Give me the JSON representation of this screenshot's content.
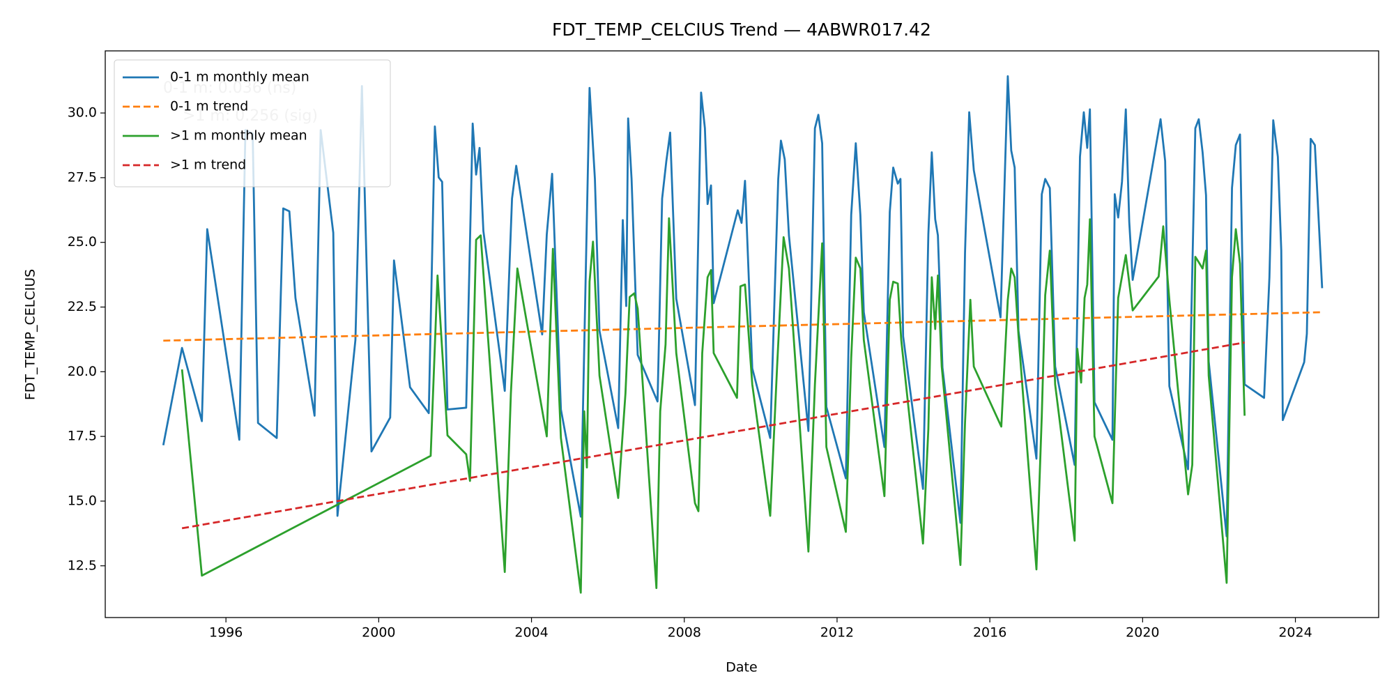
{
  "chart_data": {
    "type": "line",
    "title": "FDT_TEMP_CELCIUS Trend — 4ABWR017.42",
    "xlabel": "Date",
    "ylabel": "FDT_TEMP_CELCIUS",
    "xlim": [
      1992.84,
      2026.18
    ],
    "xticks": [
      1996,
      2000,
      2004,
      2008,
      2012,
      2016,
      2020,
      2024
    ],
    "ylim": [
      10.5,
      32.4
    ],
    "yticks": [
      12.5,
      {
        "value": 15,
        "label": "15.0"
      },
      17.5,
      {
        "value": 20,
        "label": "20.0"
      },
      22.5,
      {
        "value": 25,
        "label": "25.0"
      },
      27.5,
      {
        "value": 30,
        "label": "30.0"
      }
    ],
    "grid": false,
    "legend": "upper left",
    "annotations": [
      "0-1 m: 0.036 (ns)",
      ">1 m: 0.256 (sig)"
    ],
    "series": [
      {
        "name": "0-1 m monthly mean",
        "color": "#1f77b4",
        "linestyle": "solid",
        "x": [
          1994.36,
          1994.85,
          1995.37,
          1995.51,
          1996.35,
          1996.51,
          1996.7,
          1996.84,
          1997.33,
          1997.5,
          1997.66,
          1997.82,
          1998.32,
          1998.48,
          1998.81,
          1998.92,
          1999.39,
          1999.56,
          1999.81,
          2000.3,
          2000.4,
          2000.82,
          2001.31,
          2001.47,
          2001.57,
          2001.66,
          2001.8,
          2002.29,
          2002.46,
          2002.55,
          2002.64,
          2002.74,
          2003.3,
          2003.49,
          2003.6,
          2004.28,
          2004.4,
          2004.54,
          2004.77,
          2005.29,
          2005.52,
          2005.66,
          2005.78,
          2006.27,
          2006.39,
          2006.48,
          2006.53,
          2006.62,
          2006.78,
          2007.3,
          2007.42,
          2007.53,
          2007.63,
          2007.79,
          2008.28,
          2008.44,
          2008.54,
          2008.61,
          2008.7,
          2008.77,
          2009.4,
          2009.5,
          2009.59,
          2009.78,
          2010.25,
          2010.46,
          2010.53,
          2010.63,
          2010.74,
          2011.25,
          2011.42,
          2011.51,
          2011.61,
          2011.72,
          2012.23,
          2012.37,
          2012.49,
          2012.61,
          2012.7,
          2013.24,
          2013.38,
          2013.47,
          2013.59,
          2013.66,
          2013.73,
          2014.25,
          2014.39,
          2014.48,
          2014.57,
          2014.64,
          2014.76,
          2015.23,
          2015.35,
          2015.46,
          2015.58,
          2016.28,
          2016.47,
          2016.56,
          2016.65,
          2016.75,
          2017.22,
          2017.36,
          2017.45,
          2017.57,
          2017.71,
          2018.22,
          2018.36,
          2018.46,
          2018.55,
          2018.62,
          2018.74,
          2019.21,
          2019.27,
          2019.36,
          2019.46,
          2019.56,
          2019.65,
          2019.74,
          2020.47,
          2020.59,
          2020.7,
          2021.19,
          2021.38,
          2021.47,
          2021.57,
          2021.66,
          2021.73,
          2022.2,
          2022.34,
          2022.44,
          2022.55,
          2022.67,
          2023.18,
          2023.32,
          2023.42,
          2023.54,
          2023.63,
          2023.67,
          2024.23,
          2024.3,
          2024.4,
          2024.51,
          2024.7
        ],
        "values": [
          17.16,
          20.92,
          18.09,
          25.51,
          17.37,
          29.34,
          29.2,
          18.02,
          17.44,
          26.31,
          26.2,
          22.85,
          18.3,
          29.34,
          25.37,
          14.43,
          21.23,
          31.04,
          16.92,
          18.23,
          24.3,
          19.4,
          18.4,
          29.48,
          27.51,
          27.34,
          18.54,
          18.61,
          29.59,
          27.62,
          28.65,
          25.44,
          19.26,
          26.69,
          27.96,
          21.44,
          25.31,
          27.65,
          18.54,
          14.4,
          30.97,
          27.45,
          21.58,
          17.82,
          25.86,
          22.54,
          29.79,
          27.45,
          20.65,
          18.85,
          26.69,
          28.14,
          29.24,
          22.82,
          18.71,
          30.79,
          29.41,
          26.48,
          27.2,
          22.65,
          26.24,
          25.75,
          27.38,
          20.13,
          17.44,
          27.45,
          28.93,
          28.21,
          25.27,
          17.71,
          29.41,
          29.93,
          28.83,
          18.64,
          15.88,
          26.06,
          28.83,
          26.06,
          22.3,
          17.09,
          26.17,
          27.89,
          27.27,
          27.45,
          21.37,
          15.47,
          25.31,
          28.48,
          25.89,
          25.27,
          20.16,
          14.16,
          24.58,
          30.03,
          27.79,
          22.1,
          31.42,
          28.55,
          27.89,
          21.58,
          16.64,
          26.86,
          27.45,
          27.1,
          20.2,
          16.4,
          28.31,
          30.03,
          28.65,
          30.14,
          18.82,
          17.37,
          26.86,
          25.96,
          27.34,
          30.14,
          25.79,
          23.55,
          29.76,
          28.14,
          19.44,
          16.23,
          29.41,
          29.76,
          28.48,
          26.82,
          20.4,
          13.64,
          27.1,
          28.76,
          29.17,
          19.51,
          18.99,
          23.65,
          29.72,
          28.31,
          24.68,
          18.13,
          20.37,
          21.47,
          29.0,
          28.76,
          23.23
        ]
      },
      {
        "name": "0-1 m trend",
        "color": "#ff7f0e",
        "linestyle": "dashed",
        "x": [
          1994.36,
          2024.7
        ],
        "values": [
          21.2,
          22.3
        ]
      },
      {
        "name": ">1 m monthly mean",
        "color": "#2ca02c",
        "linestyle": "solid",
        "x": [
          1994.85,
          1995.37,
          2001.36,
          2001.54,
          2001.8,
          2002.29,
          2002.39,
          2002.55,
          2002.67,
          2003.3,
          2003.46,
          2003.63,
          2004.4,
          2004.56,
          2004.77,
          2005.29,
          2005.38,
          2005.45,
          2005.52,
          2005.61,
          2005.78,
          2006.27,
          2006.46,
          2006.57,
          2006.69,
          2006.78,
          2007.27,
          2007.37,
          2007.51,
          2007.6,
          2007.79,
          2008.28,
          2008.37,
          2008.47,
          2008.61,
          2008.7,
          2008.77,
          2009.38,
          2009.47,
          2009.59,
          2009.78,
          2010.25,
          2010.43,
          2010.6,
          2010.74,
          2011.25,
          2011.42,
          2011.61,
          2011.72,
          2012.23,
          2012.37,
          2012.49,
          2012.61,
          2012.7,
          2013.24,
          2013.38,
          2013.47,
          2013.59,
          2013.68,
          2014.25,
          2014.39,
          2014.48,
          2014.57,
          2014.64,
          2014.74,
          2015.23,
          2015.35,
          2015.49,
          2015.58,
          2016.3,
          2016.47,
          2016.56,
          2016.65,
          2016.75,
          2017.22,
          2017.36,
          2017.45,
          2017.57,
          2017.71,
          2018.22,
          2018.29,
          2018.39,
          2018.48,
          2018.55,
          2018.62,
          2018.74,
          2019.21,
          2019.36,
          2019.56,
          2019.74,
          2020.42,
          2020.54,
          2020.7,
          2021.19,
          2021.3,
          2021.38,
          2021.47,
          2021.57,
          2021.66,
          2021.73,
          2022.2,
          2022.34,
          2022.44,
          2022.55,
          2022.67
        ],
        "values": [
          20.09,
          12.12,
          16.75,
          23.72,
          17.54,
          16.81,
          15.78,
          25.1,
          25.27,
          12.26,
          19.16,
          23.99,
          17.5,
          24.75,
          17.44,
          11.46,
          18.47,
          16.3,
          23.48,
          25.03,
          19.85,
          15.12,
          19.16,
          22.89,
          23.03,
          22.44,
          11.64,
          18.47,
          21.06,
          25.93,
          20.72,
          14.92,
          14.61,
          20.72,
          23.65,
          23.93,
          20.72,
          18.99,
          23.3,
          23.37,
          19.51,
          14.43,
          20.2,
          25.2,
          23.99,
          13.05,
          19.51,
          24.96,
          17.09,
          13.81,
          20.54,
          24.41,
          23.99,
          21.23,
          15.19,
          22.78,
          23.48,
          23.41,
          21.23,
          13.36,
          17.78,
          23.65,
          21.65,
          23.72,
          20.2,
          12.53,
          18.02,
          22.78,
          20.2,
          17.88,
          22.78,
          23.99,
          23.65,
          21.41,
          12.36,
          18.3,
          22.96,
          24.68,
          19.51,
          13.47,
          20.89,
          19.58,
          22.85,
          23.37,
          25.89,
          17.5,
          14.92,
          22.85,
          24.51,
          22.37,
          23.68,
          25.62,
          22.78,
          15.26,
          16.4,
          24.44,
          24.23,
          23.99,
          24.68,
          19.85,
          11.84,
          23.65,
          25.51,
          24.17,
          18.3
        ]
      },
      {
        "name": ">1 m trend",
        "color": "#d62728",
        "linestyle": "dashed",
        "x": [
          1994.85,
          2022.67
        ],
        "values": [
          13.95,
          21.13
        ]
      }
    ]
  }
}
